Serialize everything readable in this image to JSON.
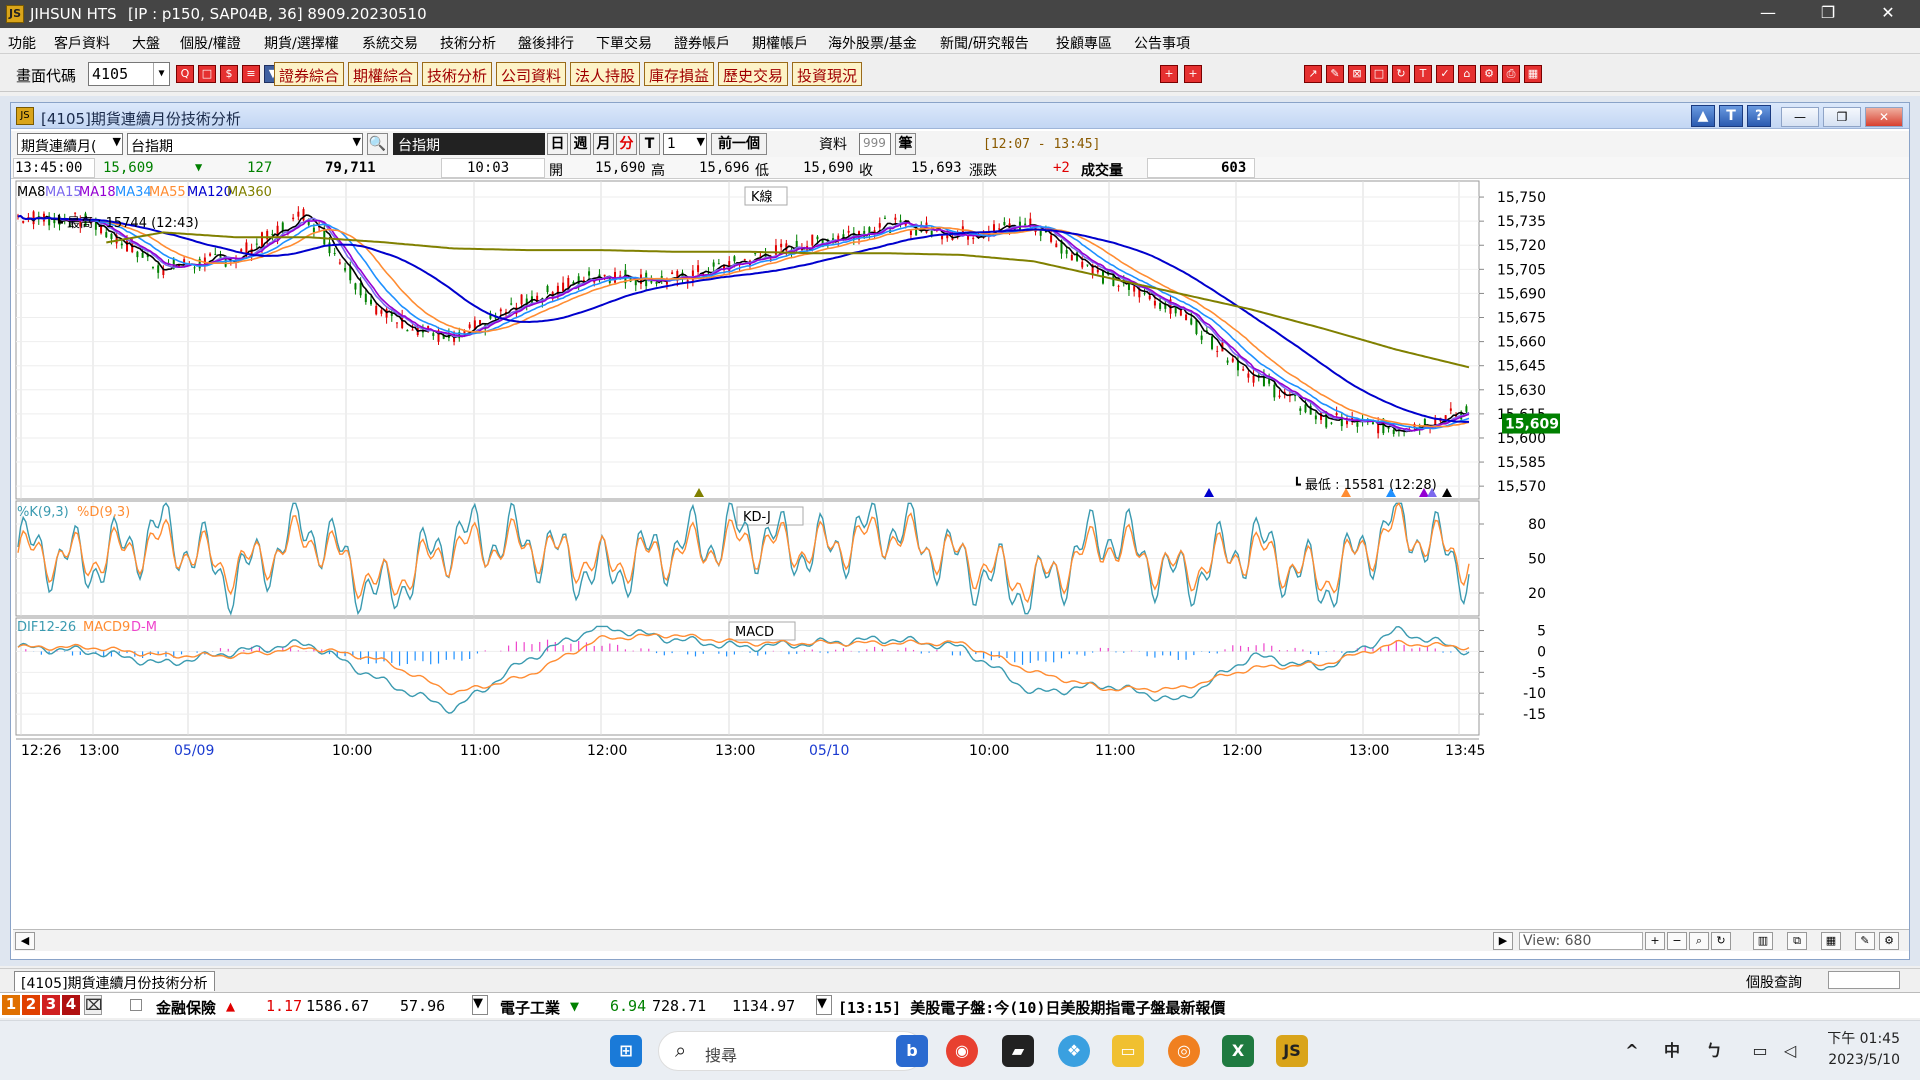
{
  "app": {
    "title": "JIHSUN HTS",
    "server": "[IP : p150, SAP04B, 36] 8909.20230510",
    "logo": "JS"
  },
  "menu": [
    "功能",
    "客戶資料",
    "大盤",
    "個股/權證",
    "期貨/選擇權",
    "系統交易",
    "技術分析",
    "盤後排行",
    "下單交易",
    "證券帳戶",
    "期權帳戶",
    "海外股票/基金",
    "新聞/研究報告",
    "投顧專區",
    "公告事項"
  ],
  "toolbar": {
    "code_label": "畫面代碼",
    "code_value": "4105",
    "buttons": [
      "證券綜合",
      "期權綜合",
      "技術分析",
      "公司資料",
      "法人持股",
      "庫存損益",
      "歷史交易",
      "投資現況"
    ]
  },
  "window": {
    "title": "[4105]期貨連續月份技術分析",
    "help_buttons": [
      "▲",
      "T",
      "?"
    ]
  },
  "controls": {
    "product_type": "期貨連續月(",
    "product_name": "台指期",
    "symbol_display": "台指期",
    "periods": [
      "日",
      "週",
      "月",
      "分",
      "T"
    ],
    "interval": "1",
    "prev_button": "前一個",
    "data_label": "資料",
    "data_count": "999",
    "data_unit": "筆",
    "time_range": "[12:07 - 13:45]"
  },
  "quote": {
    "time": "13:45:00",
    "price": "15,609",
    "change": "127",
    "volume_total": "79,711",
    "tick_time": "10:03",
    "open_label": "開",
    "open": "15,690",
    "high_label": "高",
    "high": "15,696",
    "low_label": "低",
    "low": "15,690",
    "close_label": "收",
    "close": "15,693",
    "chg_label": "漲跌",
    "chg": "+2",
    "vol_label": "成交量",
    "vol": "603"
  },
  "colors": {
    "up": "#e00000",
    "down": "#008000",
    "ma8": "#000000",
    "ma15": "#7b68ee",
    "ma18": "#9400d3",
    "ma34": "#1e90ff",
    "ma55": "#ff8c32",
    "ma120": "#0000cd",
    "ma360": "#808000",
    "k": "#3a9ab0",
    "d": "#ff8c32",
    "dif": "#3a9ab0",
    "macd9": "#ff8c32",
    "dm_pos": "#ee44cc",
    "dm_neg": "#1e90ff"
  },
  "chart_data": [
    {
      "type": "line",
      "title": "K線",
      "legend": [
        "MA8",
        "MA15",
        "MA18",
        "MA34",
        "MA55",
        "MA120",
        "MA360"
      ],
      "annotations": [
        "最高 : 15744 (12:43)",
        "最低 : 15581 (12:28)"
      ],
      "last_price": "15,609",
      "ylim": [
        15562,
        15760
      ],
      "y_ticks": [
        "15,750",
        "15,735",
        "15,720",
        "15,705",
        "15,690",
        "15,675",
        "15,660",
        "15,645",
        "15,630",
        "15,615",
        "15,600",
        "15,585",
        "15,570"
      ],
      "x_ticks": [
        "12:26",
        "13:00",
        "05/09",
        "10:00",
        "11:00",
        "12:00",
        "13:00",
        "05/10",
        "10:00",
        "11:00",
        "12:00",
        "13:00",
        "13:45"
      ],
      "x": [
        0,
        5,
        10,
        15,
        20,
        25,
        30,
        35,
        40,
        45,
        50,
        55,
        60,
        65,
        70,
        75,
        80,
        85,
        90,
        95,
        100
      ],
      "series": [
        {
          "name": "price",
          "values": [
            15738,
            15735,
            15706,
            15712,
            15740,
            15678,
            15660,
            15685,
            15702,
            15698,
            15710,
            15722,
            15733,
            15727,
            15733,
            15700,
            15680,
            15640,
            15612,
            15606,
            15616
          ]
        },
        {
          "name": "MA360",
          "values": [
            15712,
            15720,
            15728,
            15725,
            15725,
            15722,
            15718,
            15717,
            15717,
            15716,
            15716,
            15715,
            15715,
            15714,
            15710,
            15700,
            15690,
            15680,
            15668,
            15655,
            15644
          ]
        }
      ]
    },
    {
      "type": "line",
      "title": "KD-J",
      "legend": [
        "%K(9,3)",
        "%D(9,3)"
      ],
      "y_ticks": [
        "80",
        "50",
        "20"
      ],
      "ylim": [
        0,
        100
      ],
      "x": [
        0,
        5,
        10,
        15,
        20,
        25,
        30,
        35,
        40,
        45,
        50,
        55,
        60,
        65,
        70,
        75,
        80,
        85,
        90,
        95,
        100
      ],
      "series": [
        {
          "name": "%K(9,3)",
          "values": [
            60,
            45,
            75,
            30,
            80,
            15,
            70,
            65,
            35,
            60,
            72,
            55,
            80,
            45,
            20,
            75,
            30,
            65,
            25,
            85,
            40
          ]
        },
        {
          "name": "%D(9,3)",
          "values": [
            55,
            50,
            65,
            40,
            70,
            25,
            60,
            62,
            45,
            55,
            65,
            58,
            72,
            50,
            28,
            65,
            38,
            58,
            32,
            78,
            48
          ]
        }
      ]
    },
    {
      "type": "line",
      "title": "MACD",
      "legend": [
        "DIF12-26",
        "MACD9",
        "D-M"
      ],
      "y_ticks": [
        "5",
        "0",
        "-5",
        "-10",
        "-15"
      ],
      "ylim": [
        -20,
        8
      ],
      "x": [
        0,
        5,
        10,
        15,
        20,
        25,
        30,
        35,
        40,
        45,
        50,
        55,
        60,
        65,
        70,
        75,
        80,
        85,
        90,
        95,
        100
      ],
      "series": [
        {
          "name": "DIF12-26",
          "values": [
            1,
            0,
            -3,
            0,
            2,
            -7,
            -14,
            -2,
            6,
            3,
            1,
            2,
            3,
            1,
            -10,
            -8,
            -12,
            -1,
            -4,
            5,
            0
          ]
        },
        {
          "name": "MACD9",
          "values": [
            1,
            1,
            -1,
            -1,
            1,
            -2,
            -10,
            -6,
            3,
            4,
            2,
            2,
            2,
            2,
            -5,
            -9,
            -9,
            -4,
            -3,
            2,
            1
          ]
        }
      ]
    }
  ],
  "scroll": {
    "view_label": "View:",
    "view_value": "680"
  },
  "tabs": {
    "active": "[4105]期貨連續月份技術分析",
    "query_label": "個股查詢"
  },
  "ticker": {
    "nums": [
      "1",
      "2",
      "3",
      "4"
    ],
    "i1_name": "金融保險",
    "i1_arrow": "▲",
    "i1_chg": "1.17",
    "i1_val": "1586.67",
    "i1_vol": "57.96",
    "i2_name": "電子工業",
    "i2_arrow": "▼",
    "i2_chg": "6.94",
    "i2_val": "728.71",
    "i2_vol": "1134.97",
    "news": "[13:15] 美股電子盤:今(10)日美股期指電子盤最新報價"
  },
  "taskbar": {
    "search": "搜尋",
    "ime": "中",
    "time": "下午 01:45",
    "date": "2023/5/10"
  }
}
